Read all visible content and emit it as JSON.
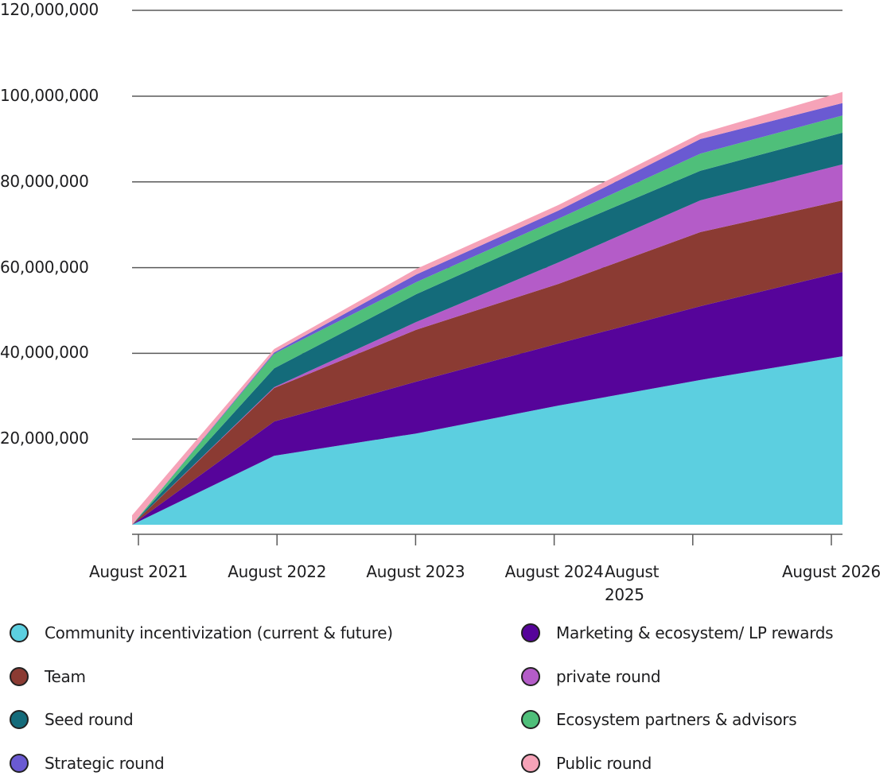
{
  "chart_data": {
    "type": "area",
    "stacked": true,
    "title": "",
    "xlabel": "",
    "ylabel": "",
    "ylim": [
      0,
      120000000
    ],
    "y_ticks": [
      20000000,
      40000000,
      60000000,
      80000000,
      100000000,
      120000000
    ],
    "y_tick_labels": [
      "20,000,000",
      "40,000,000",
      "60,000,000",
      "80,000,000",
      "100,000,000",
      "120,000,000"
    ],
    "grid": true,
    "x": [
      "August 2021",
      "August 2022",
      "August 2023",
      "August 2024",
      "August 2025",
      "August 2026"
    ],
    "x_tick_labels": [
      "August 2021",
      "August 2022",
      "August 2023",
      "August 2024",
      "August 2025",
      "August 2026"
    ],
    "legend_position": "bottom",
    "series": [
      {
        "name": "Community incentivization (current & future)",
        "color": "#5ccfe0",
        "values": [
          0,
          16100000,
          21300000,
          27800000,
          33800000,
          39300000
        ]
      },
      {
        "name": "Marketing & ecosystem/ LP rewards",
        "color": "#56049a",
        "values": [
          0,
          8000000,
          12100000,
          14500000,
          17200000,
          19700000
        ]
      },
      {
        "name": "Team",
        "color": "#8b3b33",
        "values": [
          0,
          7800000,
          12100000,
          13900000,
          17300000,
          16700000
        ]
      },
      {
        "name": "private round",
        "color": "#b45cc8",
        "values": [
          0,
          200000,
          1800000,
          5000000,
          7400000,
          8400000
        ]
      },
      {
        "name": "Seed round",
        "color": "#146b7a",
        "values": [
          0,
          4400000,
          6500000,
          7400000,
          6900000,
          7400000
        ]
      },
      {
        "name": "Ecosystem partners & advisors",
        "color": "#4fbf7a",
        "values": [
          0,
          3400000,
          2800000,
          2800000,
          4000000,
          4000000
        ]
      },
      {
        "name": "Strategic round",
        "color": "#6a5ad2",
        "values": [
          0,
          300000,
          1800000,
          1900000,
          3400000,
          2900000
        ]
      },
      {
        "name": "Public round",
        "color": "#f6a3b8",
        "values": [
          2200000,
          800000,
          1300000,
          1300000,
          1300000,
          2600000
        ]
      }
    ]
  }
}
